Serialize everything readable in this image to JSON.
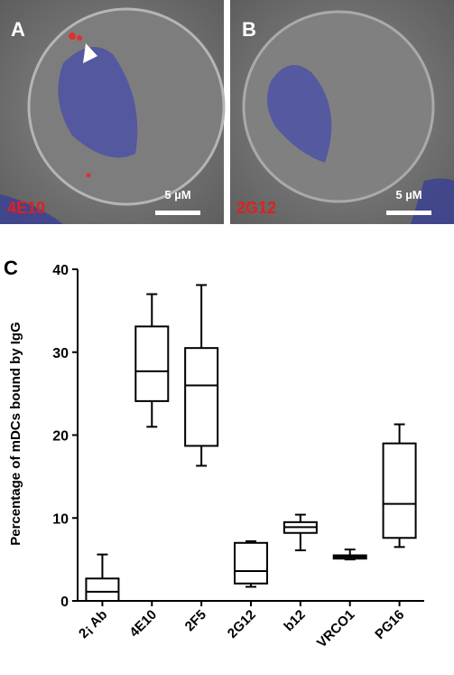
{
  "panels": {
    "a": {
      "label": "A",
      "stain": "4E10",
      "scale": "5 µM"
    },
    "b": {
      "label": "B",
      "stain": "2G12",
      "scale": "5 µM"
    }
  },
  "chart_data": {
    "type": "box",
    "panel_label": "C",
    "y_label": "Percentage of mDCs bound by IgG",
    "categories": [
      "2¡ Ab",
      "4E10",
      "2F5",
      "2G12",
      "b12",
      "VRCO1",
      "PG16"
    ],
    "whisker_low": [
      0,
      21.0,
      16.3,
      1.7,
      6.1,
      5.0,
      6.5
    ],
    "q1": [
      0,
      24.1,
      18.7,
      2.1,
      8.2,
      5.1,
      7.6
    ],
    "median": [
      1.1,
      27.7,
      26.0,
      3.6,
      8.9,
      5.3,
      11.7
    ],
    "q3": [
      2.7,
      33.1,
      30.5,
      7.0,
      9.5,
      5.5,
      19.0
    ],
    "whisker_high": [
      5.6,
      37.0,
      38.1,
      7.2,
      10.4,
      6.2,
      21.3
    ],
    "color": "#000000",
    "ylim": [
      0,
      40
    ],
    "yticks": [
      0,
      10,
      20,
      30,
      40
    ]
  }
}
